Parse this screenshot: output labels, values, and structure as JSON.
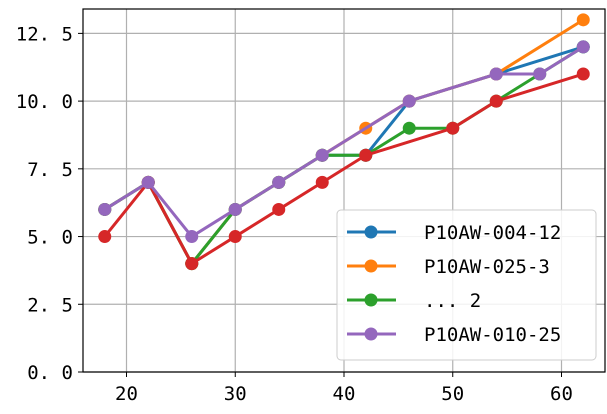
{
  "chart_data": {
    "type": "line",
    "title": "",
    "xlabel": "",
    "ylabel": "",
    "xlim": [
      16,
      64
    ],
    "ylim": [
      0,
      13.4
    ],
    "xticks": [
      20,
      30,
      40,
      50,
      60
    ],
    "yticks": [
      0,
      2.5,
      5,
      7.5,
      10,
      12.5
    ],
    "xtick_labels": [
      "20",
      "30",
      "40",
      "50",
      "60"
    ],
    "ytick_labels": [
      "0. 0",
      "2. 5",
      "5. 0",
      "7. 5",
      "10. 0",
      "12. 5"
    ],
    "grid": true,
    "legend_position": "lower-right",
    "series": [
      {
        "name": "P10AW-004-12",
        "color": "#1f77b4",
        "in_legend": true,
        "x": [
          18,
          22,
          26,
          30,
          34,
          38,
          42,
          46,
          54,
          62
        ],
        "y": [
          6,
          7,
          4,
          6,
          7,
          8,
          8,
          10,
          11,
          12
        ]
      },
      {
        "name": "P10AW-025-3",
        "color": "#ff7f0e",
        "in_legend": true,
        "x": [
          18,
          22,
          26,
          30,
          34,
          38,
          42,
          46,
          54,
          62
        ],
        "y": [
          6,
          7,
          4,
          6,
          7,
          8,
          9,
          10,
          11,
          13
        ]
      },
      {
        "name": "... 2",
        "color": "#2ca02c",
        "in_legend": true,
        "x": [
          18,
          22,
          26,
          30,
          34,
          38,
          42,
          46,
          50,
          54,
          58,
          62
        ],
        "y": [
          6,
          7,
          4,
          6,
          7,
          8,
          8,
          9,
          9,
          10,
          11,
          12
        ]
      },
      {
        "name": "",
        "color": "#d62728",
        "in_legend": false,
        "x": [
          18,
          22,
          26,
          30,
          34,
          38,
          42,
          50,
          54,
          62
        ],
        "y": [
          5,
          7,
          4,
          5,
          6,
          7,
          8,
          9,
          10,
          11
        ]
      },
      {
        "name": "P10AW-010-25",
        "color": "#9467bd",
        "in_legend": true,
        "x": [
          18,
          22,
          26,
          30,
          34,
          38,
          46,
          54,
          58,
          62
        ],
        "y": [
          6,
          7,
          5,
          6,
          7,
          8,
          10,
          11,
          11,
          12
        ]
      }
    ]
  }
}
